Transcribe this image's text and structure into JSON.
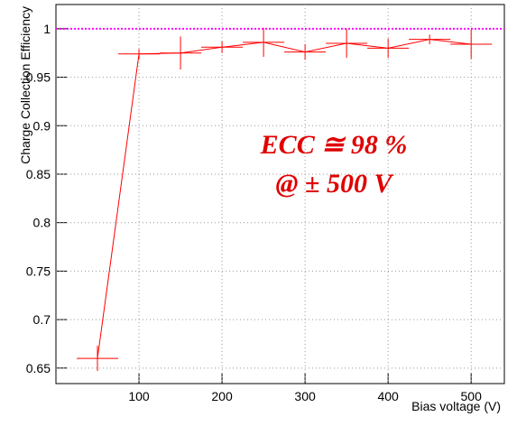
{
  "chart_data": {
    "type": "line",
    "x_label": "Bias voltage (V)",
    "y_label": "Charge Collection Efficiency",
    "x": [
      50,
      100,
      150,
      200,
      250,
      300,
      350,
      400,
      450,
      500
    ],
    "series": [
      {
        "color": "#ff0000",
        "values": [
          0.66,
          0.974,
          0.975,
          0.981,
          0.986,
          0.976,
          0.985,
          0.98,
          0.989,
          0.984
        ],
        "y_errors": [
          0.013,
          0.005,
          0.017,
          0.006,
          0.015,
          0.008,
          0.015,
          0.01,
          0.005,
          0.015
        ],
        "x_errors": [
          25,
          25,
          25,
          25,
          25,
          25,
          25,
          25,
          25,
          25
        ]
      }
    ],
    "reference_line": {
      "value": 1,
      "color": "#ff00ff"
    },
    "annotations": [
      "ECC  ≅ 98 %",
      "@ ± 500 V"
    ],
    "xlim": [
      0,
      540
    ],
    "ylim": [
      0.634,
      1.025
    ],
    "xticks": [
      100,
      200,
      300,
      400,
      500
    ],
    "yticks": [
      0.65,
      0.7,
      0.75,
      0.8,
      0.85,
      0.9,
      0.95,
      1
    ],
    "grid": true
  }
}
